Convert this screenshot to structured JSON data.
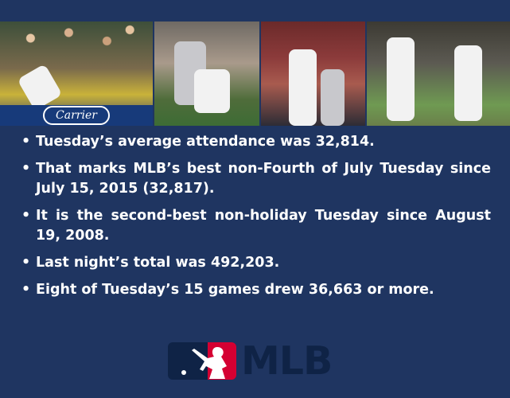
{
  "photos": {
    "sign_text": "Carrier"
  },
  "bullets": [
    "Tuesday’s average attendance was 32,814.",
    "That marks MLB’s best non-Fourth of July Tuesday since July 15, 2015 (32,817).",
    "It is the second-best non-holiday Tuesday since August 19, 2008.",
    "Last night’s total was 492,203.",
    "Eight of Tuesday’s 15 games drew 36,663 or more."
  ],
  "logo": {
    "text": "MLB"
  },
  "colors": {
    "background": "#1f3561",
    "logo_red": "#d50032",
    "logo_blue": "#0f2346",
    "text": "#ffffff"
  }
}
